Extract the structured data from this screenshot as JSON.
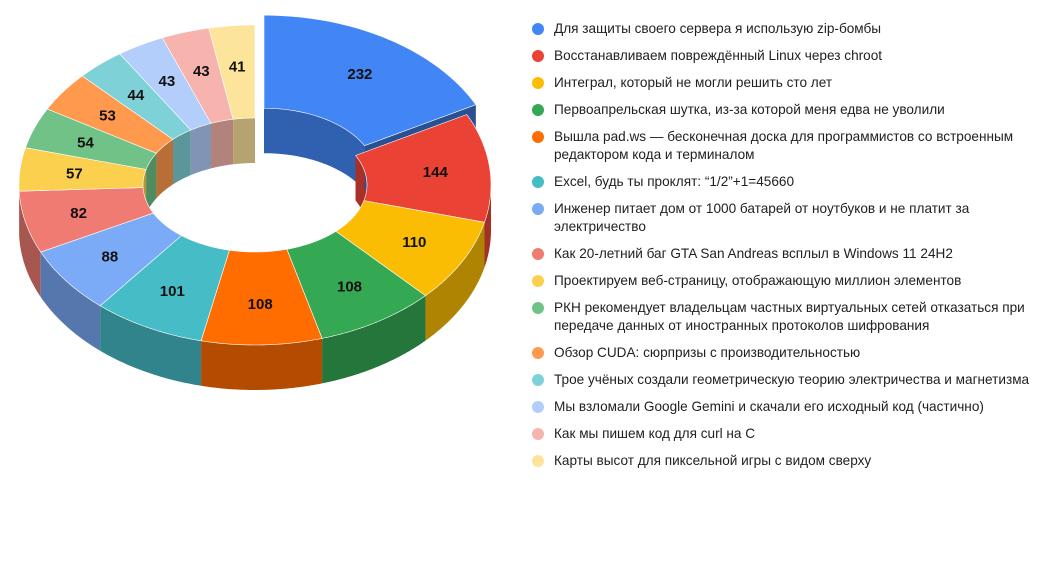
{
  "chart_data": {
    "type": "pie",
    "variant": "3d-donut",
    "exploded_slice": 0,
    "legend_position": "right",
    "series": [
      {
        "label": "Для защиты своего сервера я использую zip-бомбы",
        "value": 232,
        "color": "#4285F4"
      },
      {
        "label": "Восстанавливаем повреждённый Linux через chroot",
        "value": 144,
        "color": "#EA4335"
      },
      {
        "label": "Интеграл, который не могли решить сто лет",
        "value": 110,
        "color": "#FBBC04"
      },
      {
        "label": "Первоапрельская шутка, из-за которой меня едва не уволили",
        "value": 108,
        "color": "#34A853"
      },
      {
        "label": "Вышла pad.ws — бесконечная доска для программистов со встроенным редактором кода и терминалом",
        "value": 108,
        "color": "#FF6D01"
      },
      {
        "label": "Excel, будь ты проклят: “1/2”+1=45660",
        "value": 101,
        "color": "#46BDC6"
      },
      {
        "label": "Инженер питает дом от 1000 батарей от ноутбуков и не платит за электричество",
        "value": 88,
        "color": "#7BAAF7"
      },
      {
        "label": "Как 20-летний баг GTA San Andreas всплыл в Windows 11 24H2",
        "value": 82,
        "color": "#F07B72"
      },
      {
        "label": "Проектируем веб-страницу, отображающую миллион элементов",
        "value": 57,
        "color": "#FCD04F"
      },
      {
        "label": "РКН рекомендует владельцам частных виртуальных сетей отказаться при передаче данных от иностранных протоколов шифрования",
        "value": 54,
        "color": "#71C287"
      },
      {
        "label": "Обзор CUDA: сюрпризы с производительностью",
        "value": 53,
        "color": "#FF994D"
      },
      {
        "label": "Трое учёных создали геометрическую теорию электричества и магнетизма",
        "value": 44,
        "color": "#7ED1D7"
      },
      {
        "label": "Мы взломали Google Gemini и скачали его исходный код (частично)",
        "value": 43,
        "color": "#B3CEFB"
      },
      {
        "label": "Как мы пишем код для curl на C",
        "value": 43,
        "color": "#F7B4AE"
      },
      {
        "label": "Карты высот для пиксельной игры с видом сверху",
        "value": 41,
        "color": "#FDE49B"
      }
    ]
  }
}
